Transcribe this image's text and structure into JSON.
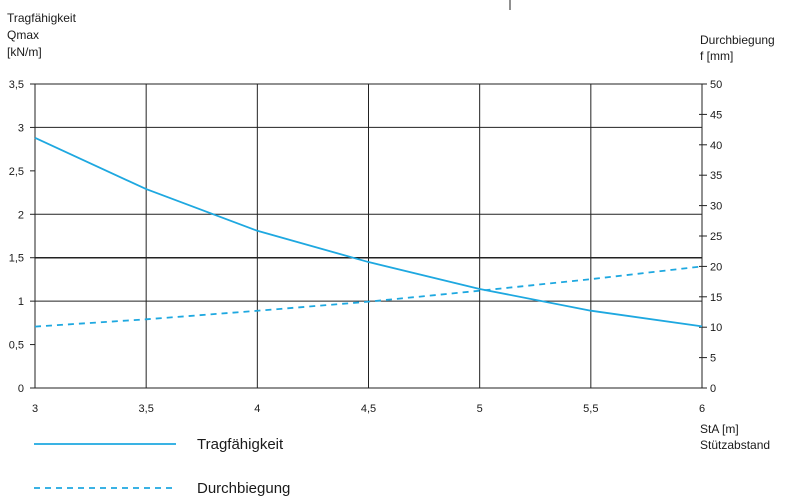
{
  "chart_data": {
    "type": "line",
    "x": [
      3,
      3.5,
      4,
      4.5,
      5,
      5.5,
      6
    ],
    "xlim": [
      3,
      6
    ],
    "xticks": [
      "3",
      "3,5",
      "4",
      "4,5",
      "5",
      "5,5",
      "6"
    ],
    "xlabel": [
      "StA [m]",
      "Stützabstand"
    ],
    "ylabel_left": [
      "Tragfähigkeit",
      "Qmax",
      "[kN/m]"
    ],
    "ylim_left": [
      0,
      3.5
    ],
    "yticks_left": [
      "0",
      "0,5",
      "1",
      "1,5",
      "2",
      "2,5",
      "3",
      "3,5"
    ],
    "ylabel_right": [
      "Durchbiegung",
      "f [mm]"
    ],
    "ylim_right": [
      0,
      50
    ],
    "yticks_right": [
      "0",
      "5",
      "10",
      "15",
      "20",
      "25",
      "30",
      "35",
      "40",
      "45",
      "50"
    ],
    "grid": true,
    "legend_position": "bottom-left",
    "series": [
      {
        "name": "Tragfähigkeit",
        "axis": "left",
        "style": "solid",
        "color": "#1ea8e0",
        "values": [
          2.88,
          2.29,
          1.81,
          1.45,
          1.14,
          0.89,
          0.71
        ]
      },
      {
        "name": "Durchbiegung",
        "axis": "right",
        "style": "dashed",
        "color": "#1ea8e0",
        "values": [
          10.1,
          11.3,
          12.7,
          14.2,
          16.0,
          17.9,
          20.0
        ]
      }
    ]
  }
}
